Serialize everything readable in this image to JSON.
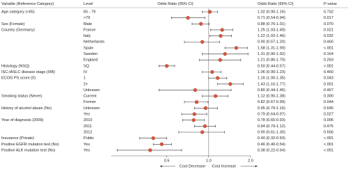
{
  "chart_data": {
    "type": "forest",
    "columns": [
      "Variable (Reference Category)",
      "Level",
      "Odds Ratio (95% CI)",
      "Odds Ratio (95% CI)",
      "P-value"
    ],
    "variables": [
      "Age category (<65)",
      null,
      "Sex (Female)",
      "Country (Germany)",
      null,
      null,
      null,
      null,
      null,
      "Histology (NSQ)",
      "ISC-IASLC disease stage (IIIB)",
      "ECOG PS score (0)",
      null,
      null,
      "Smoking status (Never)",
      null,
      "History of alcohol abuse (No)",
      null,
      "Year of diagnosis (2009)",
      null,
      null,
      "Insurance (Private)",
      "Positive EGFR mutation test (No)",
      "Positive ALK mutation test (No)"
    ],
    "categories": [
      "65 - 79",
      ">79",
      "Male",
      "France",
      "Italy",
      "Netherlands",
      "Spain",
      "Sweden",
      "England",
      "SQ",
      "IV",
      "1",
      "2+",
      "Unknown",
      "Current",
      "Former",
      "Unknown",
      "Yes",
      "2010",
      "2011",
      "2012",
      "Public",
      "Yes",
      "Yes"
    ],
    "values": [
      1.02,
      0.71,
      0.88,
      1.25,
      1.22,
      0.9,
      1.58,
      1.31,
      1.21,
      0.5,
      1.06,
      1.16,
      1.43,
      0.8,
      1.12,
      0.82,
      0.95,
      0.79,
      0.78,
      0.94,
      0.9,
      0.4,
      0.46,
      0.38
    ],
    "ci_low": [
      0.9,
      0.54,
      0.76,
      1.03,
      1.02,
      0.67,
      1.31,
      0.9,
      0.86,
      0.44,
      0.9,
      1.0,
      1.16,
      0.44,
      0.9,
      0.67,
      0.79,
      0.64,
      0.65,
      0.79,
      0.61,
      0.32,
      0.4,
      0.22
    ],
    "ci_high": [
      1.16,
      0.94,
      1.01,
      1.49,
      1.46,
      1.2,
      1.9,
      1.92,
      1.7,
      0.57,
      1.23,
      1.35,
      1.77,
      1.45,
      1.38,
      0.99,
      1.16,
      0.97,
      0.93,
      1.12,
      1.3,
      0.5,
      0.54,
      0.64
    ],
    "value_labels": [
      "1.02 (0.90-1.16)",
      "0.71 (0.54-0.94)",
      "0.88 (0.76-1.01)",
      "1.25 (1.03-1.49)",
      "1.22 (1.02-1.46)",
      "0.90 (0.67-1.20)",
      "1.58 (1.31-1.90)",
      "1.31 (0.90-1.92)",
      "1.21 (0.86-1.70)",
      "0.50 (0.44-0.57)",
      "1.06 (0.90-1.23)",
      "1.16 (1.00-1.35)",
      "1.43 (1.16-1.77)",
      "0.80 (0.44-1.45)",
      "1.12 (0.90-1.38)",
      "0.82 (0.67-0.99)",
      "0.95 (0.79-1.16)",
      "0.79 (0.64-0.97)",
      "0.78 (0.65-0.93)",
      "0.94 (0.79-1.12)",
      "0.90 (0.61-1.30)",
      "0.40 (0.32-0.50)",
      "0.46 (0.40-0.54)",
      "0.38 (0.22-0.64)"
    ],
    "p_values": [
      "0.732",
      "0.017",
      "0.070",
      "0.021",
      "0.032",
      "0.460",
      "<.001",
      "0.164",
      "0.263",
      "<.001",
      "0.460",
      "0.043",
      "0.001",
      "0.467",
      "0.300",
      "0.044",
      "0.645",
      "0.027",
      "0.006",
      "0.475",
      "0.556",
      "<.001",
      "<.001",
      "<.001"
    ],
    "xlim": [
      0.2,
      2.0
    ],
    "log_x": true,
    "reference": 1,
    "xticks": [
      0.5,
      {
        "value": 1,
        "label": "1.0"
      },
      {
        "value": 2,
        "label": "2.0"
      }
    ],
    "left_label": "Cost Decrease",
    "right_label": "Cost Increase",
    "color": "#e2553a"
  }
}
